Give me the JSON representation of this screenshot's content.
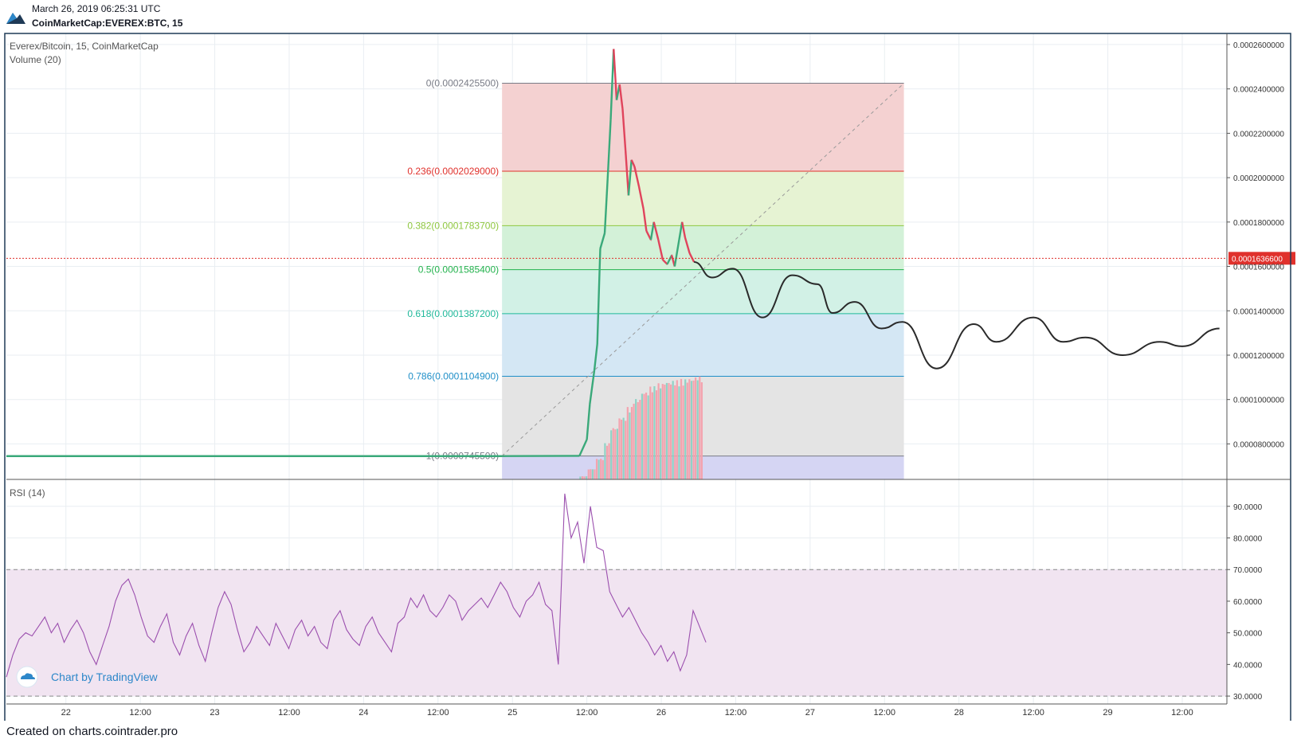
{
  "header": {
    "datetime": "March 26, 2019 06:25:31 UTC",
    "symbol": "CoinMarketCap:EVEREX:BTC, 15",
    "logo_icon": "tradingview-logo-icon"
  },
  "footer": {
    "text": "Created on charts.cointrader.pro"
  },
  "watermark": {
    "text": "Chart by TradingView",
    "icon": "tradingview-cloud-icon"
  },
  "chart_data": [
    {
      "type": "line",
      "title": "Everex/Bitcoin, 15, CoinMarketCap",
      "subtitle": "Volume (20)",
      "x_ticks": [
        "22",
        "12:00",
        "23",
        "12:00",
        "24",
        "12:00",
        "25",
        "12:00",
        "26",
        "12:00",
        "27",
        "12:00",
        "28",
        "12:00",
        "29",
        "12:00"
      ],
      "x_range_days": [
        21.6,
        29.8
      ],
      "ylim": [
        6.4e-05,
        0.000265
      ],
      "y_ticks": [
        "0.0000800000",
        "0.0001000000",
        "0.0001200000",
        "0.0001400000",
        "0.0001600000",
        "0.0001800000",
        "0.0002000000",
        "0.0002200000",
        "0.0002400000",
        "0.0002600000"
      ],
      "last_price": "0.0001636600",
      "last_price_value": 0.00016366,
      "fibonacci": {
        "x_start_day": 24.93,
        "x_end_day": 27.63,
        "levels": [
          {
            "label": "0(0.0002425500)",
            "value": 0.00024255,
            "color": "#787b86",
            "fill": "#f4d1d1"
          },
          {
            "label": "0.236(0.0002029000)",
            "value": 0.0002029,
            "color": "#e0312c",
            "fill": "#e6f3d3"
          },
          {
            "label": "0.382(0.0001783700)",
            "value": 0.00017837,
            "color": "#8fc740",
            "fill": "#d3f1d8"
          },
          {
            "label": "0.5(0.0001585400)",
            "value": 0.00015854,
            "color": "#22b24c",
            "fill": "#d2f1e6"
          },
          {
            "label": "0.618(0.0001387200)",
            "value": 0.00013872,
            "color": "#1fb89a",
            "fill": "#d4e7f4"
          },
          {
            "label": "0.786(0.0001104900)",
            "value": 0.00011049,
            "color": "#1f8fc8",
            "fill": "#e4e4e4"
          },
          {
            "label": "1(0.0000745500)",
            "value": 7.455e-05,
            "color": "#787b86",
            "fill": "#d5d5f3"
          }
        ]
      },
      "price_path": [
        [
          21.6,
          7.45e-05
        ],
        [
          24.0,
          7.45e-05
        ],
        [
          24.93,
          7.45e-05
        ],
        [
          25.45,
          7.46e-05
        ],
        [
          25.5,
          8.2e-05
        ],
        [
          25.52,
          9.8e-05
        ],
        [
          25.55,
          0.000113
        ],
        [
          25.57,
          0.000125
        ],
        [
          25.59,
          0.000168
        ],
        [
          25.62,
          0.000175
        ],
        [
          25.64,
          0.0002
        ],
        [
          25.66,
          0.000226
        ],
        [
          25.68,
          0.000258
        ],
        [
          25.7,
          0.000235
        ],
        [
          25.72,
          0.000242
        ],
        [
          25.74,
          0.000231
        ],
        [
          25.76,
          0.000212
        ],
        [
          25.78,
          0.000192
        ],
        [
          25.8,
          0.000208
        ],
        [
          25.82,
          0.000205
        ],
        [
          25.85,
          0.000196
        ],
        [
          25.88,
          0.000186
        ],
        [
          25.9,
          0.000176
        ],
        [
          25.93,
          0.000172
        ],
        [
          25.95,
          0.00018
        ],
        [
          25.98,
          0.000172
        ],
        [
          26.01,
          0.000163
        ],
        [
          26.04,
          0.000161
        ],
        [
          26.07,
          0.000165
        ],
        [
          26.09,
          0.00016
        ],
        [
          26.12,
          0.000172
        ],
        [
          26.14,
          0.00018
        ],
        [
          26.16,
          0.000173
        ],
        [
          26.19,
          0.000166
        ],
        [
          26.22,
          0.000162
        ]
      ],
      "forecast_path": [
        [
          26.22,
          0.000162
        ],
        [
          26.34,
          0.000155
        ],
        [
          26.48,
          0.000159
        ],
        [
          26.68,
          0.000137
        ],
        [
          26.88,
          0.000156
        ],
        [
          27.05,
          0.000152
        ],
        [
          27.15,
          0.000139
        ],
        [
          27.3,
          0.000144
        ],
        [
          27.48,
          0.000132
        ],
        [
          27.62,
          0.000135
        ],
        [
          27.85,
          0.000114
        ],
        [
          28.1,
          0.000134
        ],
        [
          28.25,
          0.000126
        ],
        [
          28.5,
          0.000137
        ],
        [
          28.7,
          0.000126
        ],
        [
          28.85,
          0.000128
        ],
        [
          29.1,
          0.00012
        ],
        [
          29.35,
          0.000126
        ],
        [
          29.5,
          0.000124
        ],
        [
          29.75,
          0.000132
        ]
      ],
      "volume_bars": {
        "x_start_day": 25.45,
        "x_end_day": 26.28,
        "relative_heights": [
          0.03,
          0.1,
          0.2,
          0.35,
          0.5,
          0.6,
          0.7,
          0.78,
          0.85,
          0.9,
          0.93,
          0.95,
          0.96,
          0.97,
          0.98,
          1.0
        ]
      }
    },
    {
      "type": "line",
      "title": "RSI (14)",
      "ylim": [
        27.5,
        98
      ],
      "y_ticks": [
        "30.0000",
        "40.0000",
        "50.0000",
        "60.0000",
        "70.0000",
        "80.0000",
        "90.0000"
      ],
      "band": [
        30,
        70
      ],
      "series": [
        {
          "x_range_days": [
            21.6,
            26.3
          ],
          "values": [
            36,
            43,
            48,
            50,
            49,
            52,
            55,
            50,
            53,
            47,
            51,
            54,
            50,
            44,
            40,
            46,
            52,
            60,
            65,
            67,
            62,
            55,
            49,
            47,
            52,
            56,
            47,
            43,
            49,
            53,
            46,
            41,
            50,
            58,
            63,
            59,
            51,
            44,
            47,
            52,
            49,
            46,
            53,
            49,
            45,
            51,
            54,
            49,
            52,
            47,
            45,
            54,
            57,
            51,
            48,
            46,
            52,
            55,
            50,
            47,
            44,
            53,
            55,
            61,
            58,
            62,
            57,
            55,
            58,
            62,
            60,
            54,
            57,
            59,
            61,
            58,
            62,
            66,
            63,
            58,
            55,
            60,
            62,
            66,
            59,
            57,
            40,
            94,
            80,
            85,
            72,
            90,
            77,
            76,
            63,
            59,
            55,
            58,
            54,
            50,
            47,
            43,
            46,
            41,
            44,
            38,
            43,
            57,
            52,
            47
          ]
        }
      ]
    }
  ]
}
